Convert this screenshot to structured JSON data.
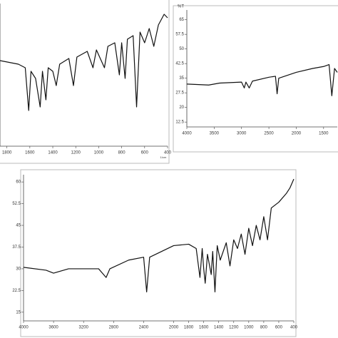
{
  "chart_data": [
    {
      "type": "line",
      "x_label": "1/cm",
      "xlim": [
        1860,
        400
      ],
      "xticks": [
        1800,
        1600,
        1400,
        1200,
        1000,
        800,
        600,
        400
      ],
      "ylim": [
        0,
        100
      ],
      "series": [
        {
          "color": "#111111",
          "x": [
            1860,
            1700,
            1640,
            1610,
            1590,
            1550,
            1510,
            1490,
            1460,
            1440,
            1400,
            1370,
            1340,
            1260,
            1220,
            1190,
            1100,
            1050,
            1020,
            950,
            920,
            860,
            820,
            800,
            770,
            750,
            700,
            670,
            640,
            600,
            560,
            520,
            480,
            430,
            400
          ],
          "values": [
            60,
            57.5,
            55,
            25,
            52.5,
            47.5,
            27.5,
            52.5,
            32.5,
            55,
            52.5,
            42.5,
            57.5,
            61.5,
            42.5,
            62.5,
            66.5,
            55,
            67.5,
            55,
            70,
            72.5,
            50,
            72.5,
            47.5,
            75,
            77.5,
            27.5,
            80,
            72.5,
            82.5,
            70,
            85,
            92.5,
            90
          ]
        }
      ]
    },
    {
      "type": "line",
      "y_label": "%T",
      "xlim": [
        4000,
        1250
      ],
      "xticks": [
        4000,
        3500,
        3000,
        2500,
        2000,
        1500
      ],
      "ylim": [
        10,
        70
      ],
      "yticks": [
        65,
        57.5,
        50,
        42.5,
        35,
        27.5,
        20,
        12.5
      ],
      "series": [
        {
          "color": "#111111",
          "x": [
            4000,
            3600,
            3400,
            3000,
            2950,
            2920,
            2860,
            2800,
            2500,
            2380,
            2350,
            2320,
            2000,
            1700,
            1500,
            1400,
            1350,
            1300,
            1250
          ],
          "values": [
            32,
            31.5,
            32.5,
            33,
            30,
            33,
            30,
            33.5,
            35.5,
            36,
            27,
            35,
            38,
            40,
            41,
            42,
            26,
            40,
            38
          ]
        }
      ]
    },
    {
      "type": "line",
      "xlim": [
        4000,
        400
      ],
      "xticks": [
        4000,
        3600,
        3200,
        2800,
        2400,
        2000,
        1800,
        1600,
        1400,
        1200,
        1000,
        800,
        600,
        400
      ],
      "ylim": [
        12,
        62.5
      ],
      "yticks": [
        60,
        52.5,
        45,
        37.5,
        30,
        22.5,
        15
      ],
      "series": [
        {
          "color": "#111111",
          "x": [
            4000,
            3700,
            3600,
            3400,
            3000,
            2900,
            2850,
            2600,
            2400,
            2360,
            2320,
            2000,
            1800,
            1700,
            1650,
            1620,
            1600,
            1580,
            1550,
            1500,
            1480,
            1450,
            1420,
            1380,
            1300,
            1250,
            1200,
            1150,
            1100,
            1050,
            1000,
            950,
            900,
            850,
            800,
            750,
            700,
            600,
            500,
            450,
            400
          ],
          "values": [
            30.5,
            29.5,
            28.5,
            30,
            30,
            27,
            30,
            33,
            34,
            22,
            34,
            38,
            38.5,
            37,
            27,
            37,
            30,
            25,
            35,
            28,
            36,
            22,
            38,
            33,
            39,
            31,
            40,
            37,
            42,
            35,
            44,
            38,
            45,
            40,
            48,
            40,
            51,
            53,
            56,
            58,
            61
          ]
        }
      ]
    }
  ]
}
